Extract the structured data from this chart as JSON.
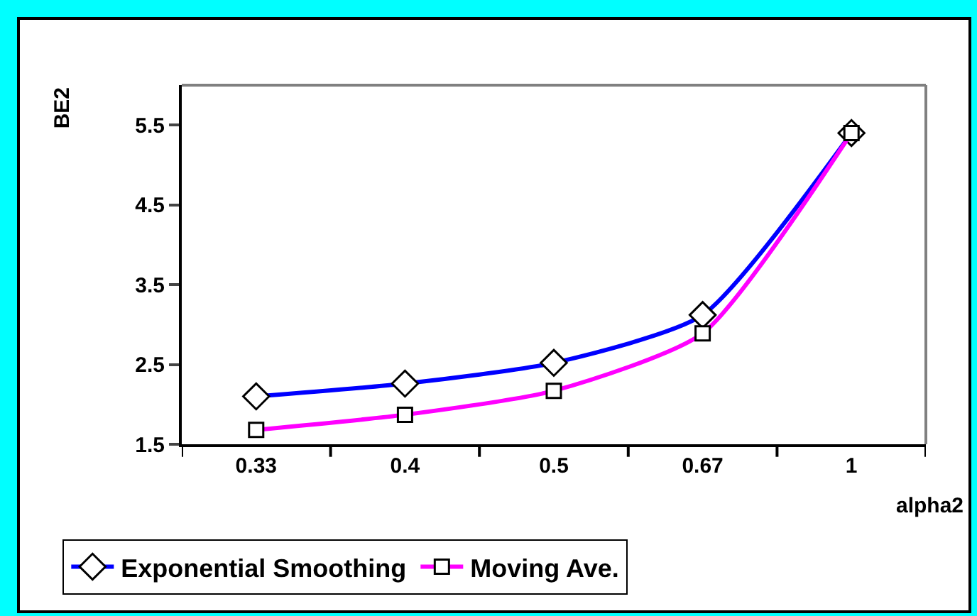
{
  "chart_data": {
    "type": "line",
    "xlabel": "alpha2",
    "ylabel": "BE2",
    "categories": [
      "0.33",
      "0.4",
      "0.5",
      "0.67",
      "1"
    ],
    "series": [
      {
        "name": "Exponential Smoothing",
        "color": "#0000ff",
        "marker": "diamond",
        "values": [
          2.1,
          2.26,
          2.52,
          3.12,
          5.4
        ]
      },
      {
        "name": "Moving Ave.",
        "color": "#ff00ff",
        "marker": "square",
        "values": [
          1.68,
          1.87,
          2.17,
          2.89,
          5.4
        ]
      }
    ],
    "ylim": [
      1.5,
      6.0
    ],
    "yticks": [
      1.5,
      2.5,
      3.5,
      4.5,
      5.5
    ],
    "grid": false,
    "legend": "bottom",
    "line_style": "solid"
  }
}
